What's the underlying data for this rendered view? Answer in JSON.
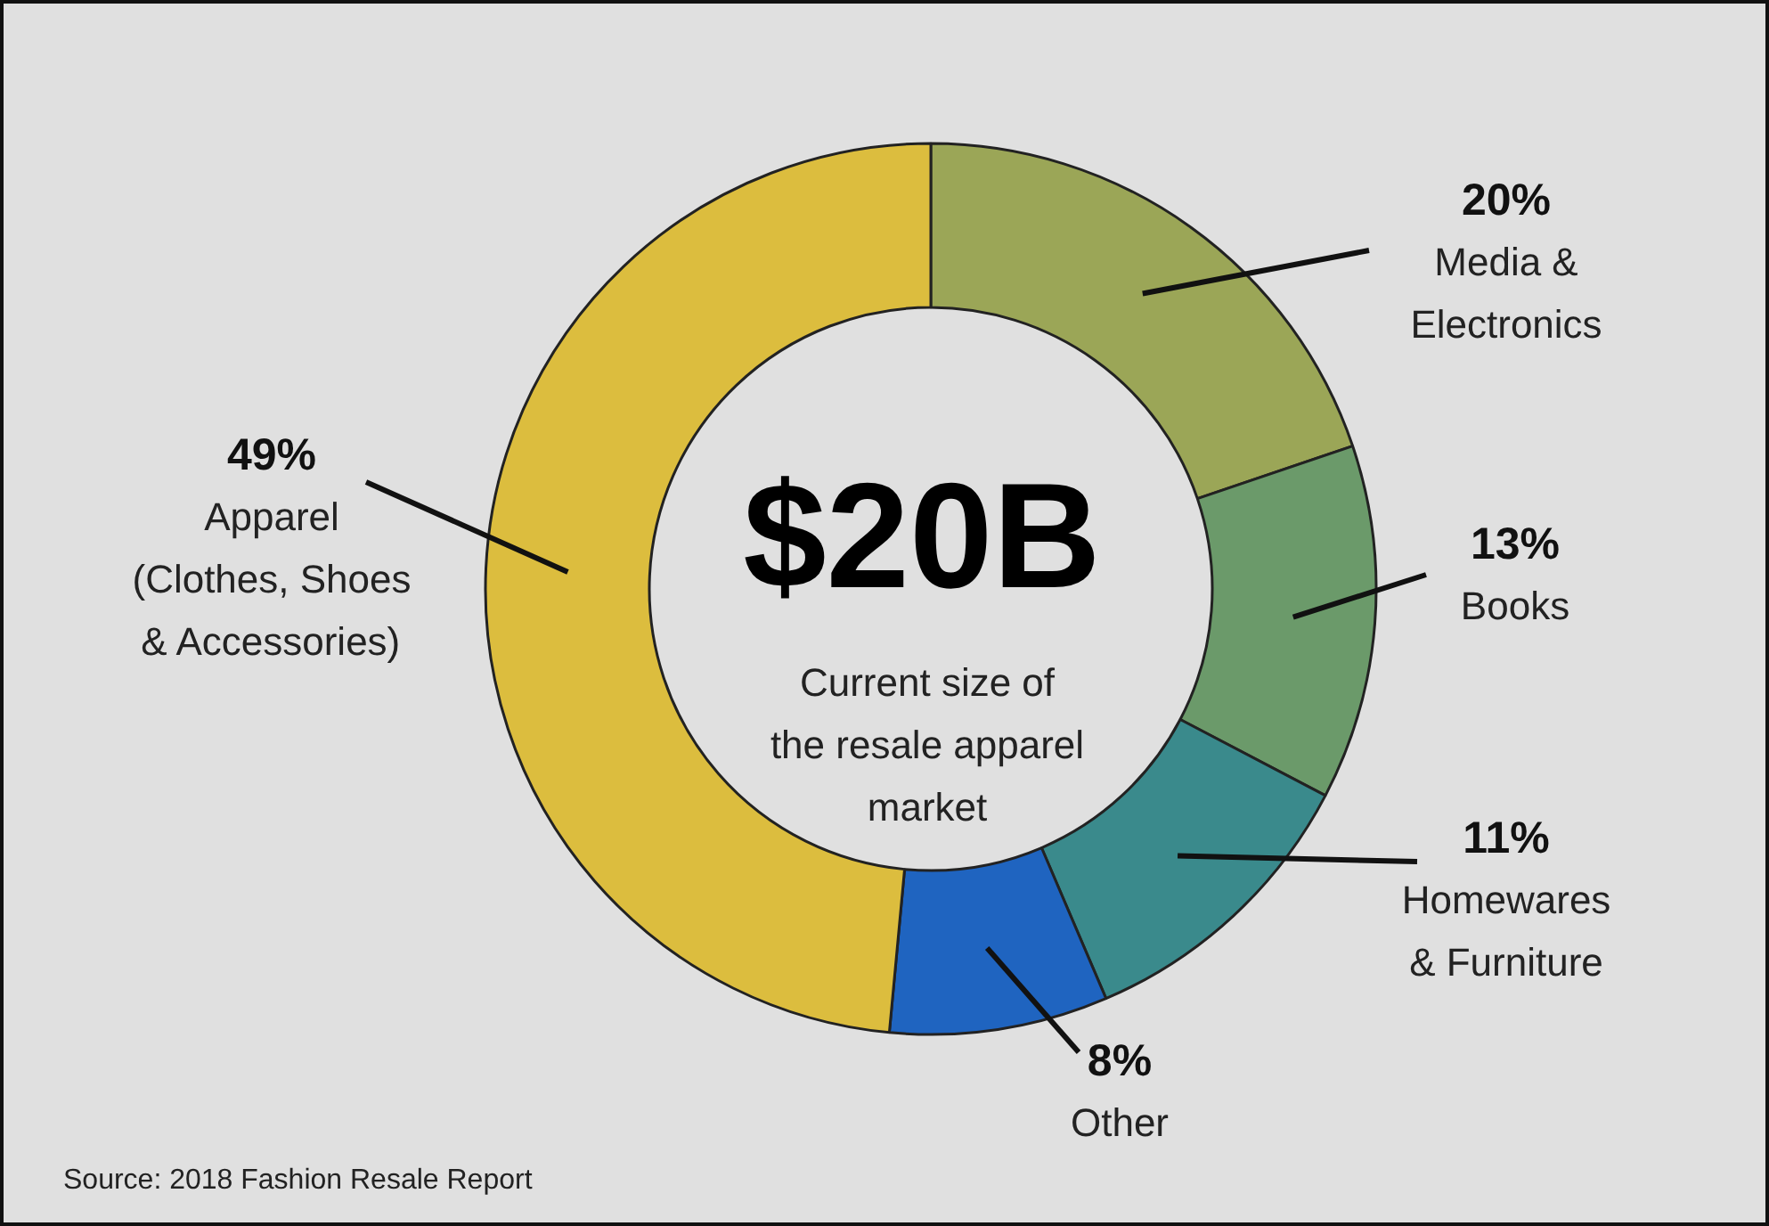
{
  "chart_data": {
    "type": "donut",
    "categories": [
      "Media &\nElectronics",
      "Books",
      "Homewares\n& Furniture",
      "Other",
      "Apparel\n(Clothes, Shoes\n& Accessories)"
    ],
    "values": [
      20,
      13,
      11,
      8,
      49
    ],
    "value_labels": [
      "20%",
      "13%",
      "11%",
      "8%",
      "49%"
    ],
    "colors": [
      "#9ba657",
      "#6b9a6a",
      "#3a8a8c",
      "#1f64c0",
      "#dcbd3e"
    ],
    "annotations": [
      "$20B",
      "Current size of\nthe resale apparel\nmarket",
      "Source: 2018 Fashion Resale Report"
    ]
  }
}
